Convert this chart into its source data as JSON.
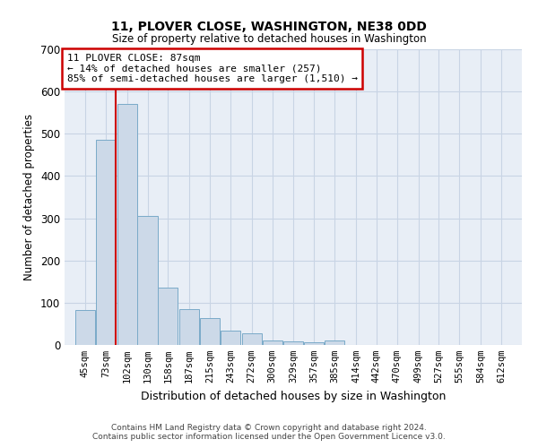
{
  "title_line1": "11, PLOVER CLOSE, WASHINGTON, NE38 0DD",
  "title_line2": "Size of property relative to detached houses in Washington",
  "xlabel": "Distribution of detached houses by size in Washington",
  "ylabel": "Number of detached properties",
  "footer_line1": "Contains HM Land Registry data © Crown copyright and database right 2024.",
  "footer_line2": "Contains public sector information licensed under the Open Government Licence v3.0.",
  "annotation_title": "11 PLOVER CLOSE: 87sqm",
  "annotation_line1": "← 14% of detached houses are smaller (257)",
  "annotation_line2": "85% of semi-detached houses are larger (1,510) →",
  "property_size": 87,
  "bins": [
    45,
    73,
    102,
    130,
    158,
    187,
    215,
    243,
    272,
    300,
    329,
    357,
    385,
    414,
    442,
    470,
    499,
    527,
    555,
    584,
    612
  ],
  "bar_heights": [
    82,
    485,
    570,
    305,
    135,
    85,
    63,
    35,
    28,
    10,
    8,
    7,
    10,
    0,
    0,
    0,
    0,
    0,
    0,
    0
  ],
  "bar_color": "#ccd9e8",
  "bar_edge_color": "#7aaac8",
  "vline_color": "#cc0000",
  "annotation_box_color": "#ffffff",
  "annotation_box_edge": "#cc0000",
  "grid_color": "#c8d4e4",
  "background_color": "#e8eef6",
  "ylim": [
    0,
    700
  ],
  "yticks": [
    0,
    100,
    200,
    300,
    400,
    500,
    600,
    700
  ],
  "title_fontsize": 10,
  "subtitle_fontsize": 9
}
